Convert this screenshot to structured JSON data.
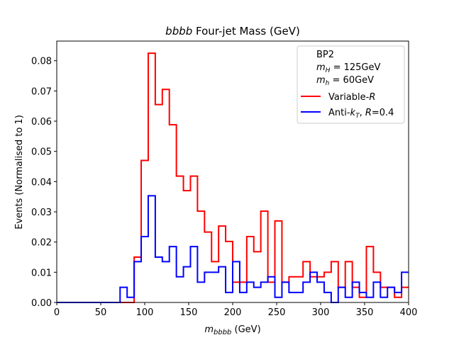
{
  "chart_data": {
    "type": "histogram-step",
    "title": {
      "italic": "bbbb",
      "rest": " Four-jet Mass (GeV)"
    },
    "xlabel": {
      "base": "m",
      "sub": "bbbb",
      "unit": " (GeV)"
    },
    "ylabel": "Events (Normalised to 1)",
    "xlim": [
      0,
      400
    ],
    "ylim": [
      0,
      0.0865
    ],
    "xticks": [
      0,
      50,
      100,
      150,
      200,
      250,
      300,
      350,
      400
    ],
    "yticks": [
      0.0,
      0.01,
      0.02,
      0.03,
      0.04,
      0.05,
      0.06,
      0.07,
      0.08
    ],
    "bin_edges": [
      0,
      8,
      16,
      24,
      32,
      40,
      48,
      56,
      64,
      72,
      80,
      88,
      96,
      104,
      112,
      120,
      128,
      136,
      144,
      152,
      160,
      168,
      176,
      184,
      192,
      200,
      208,
      216,
      224,
      232,
      240,
      248,
      256,
      264,
      272,
      280,
      288,
      296,
      304,
      312,
      320,
      328,
      336,
      344,
      352,
      360,
      368,
      376,
      384,
      392,
      400
    ],
    "series": [
      {
        "name": "Variable-R",
        "color": "#ff0000",
        "values": [
          0,
          0,
          0,
          0,
          0,
          0,
          0,
          0,
          0,
          0,
          0,
          0.015,
          0.047,
          0.0825,
          0.0655,
          0.0705,
          0.0588,
          0.0418,
          0.037,
          0.0418,
          0.0302,
          0.0233,
          0.0135,
          0.0253,
          0.0202,
          0.0067,
          0.0067,
          0.0218,
          0.0168,
          0.0302,
          0.0067,
          0.027,
          0.0067,
          0.0085,
          0.0085,
          0.0135,
          0.0085,
          0.0085,
          0.01,
          0.0135,
          0.005,
          0.0135,
          0.005,
          0.0017,
          0.0185,
          0.01,
          0.005,
          0.005,
          0.0017,
          0.005
        ]
      },
      {
        "name": "Anti-kT, R=0.4",
        "color": "#0000ff",
        "values": [
          0,
          0,
          0,
          0,
          0,
          0,
          0,
          0,
          0,
          0.005,
          0.0017,
          0.0135,
          0.0218,
          0.0353,
          0.015,
          0.0135,
          0.0185,
          0.0085,
          0.0118,
          0.0185,
          0.0067,
          0.01,
          0.01,
          0.0118,
          0.0033,
          0.0135,
          0.0033,
          0.0067,
          0.005,
          0.0067,
          0.0085,
          0.0017,
          0.0067,
          0.0033,
          0.0033,
          0.0067,
          0.01,
          0.0067,
          0.0033,
          0.0,
          0.005,
          0.0017,
          0.0067,
          0.0033,
          0.0017,
          0.0067,
          0.0017,
          0.005,
          0.0033,
          0.01
        ]
      }
    ],
    "legend": {
      "placement": "top-right",
      "header": [
        "BP2",
        "mH = 125GeV",
        "mh = 60GeV"
      ],
      "mH": {
        "base": "m",
        "sub": "H",
        "rest": " = 125GeV"
      },
      "mh": {
        "base": "m",
        "sub": "h",
        "rest": " = 60GeV"
      },
      "entry1": {
        "text": "Variable-",
        "italic": "R"
      },
      "entry2": {
        "pre": "Anti-",
        "italic": "k",
        "sub": "T",
        "mid": ", ",
        "italic2": "R",
        "rest": "=0.4"
      }
    }
  }
}
